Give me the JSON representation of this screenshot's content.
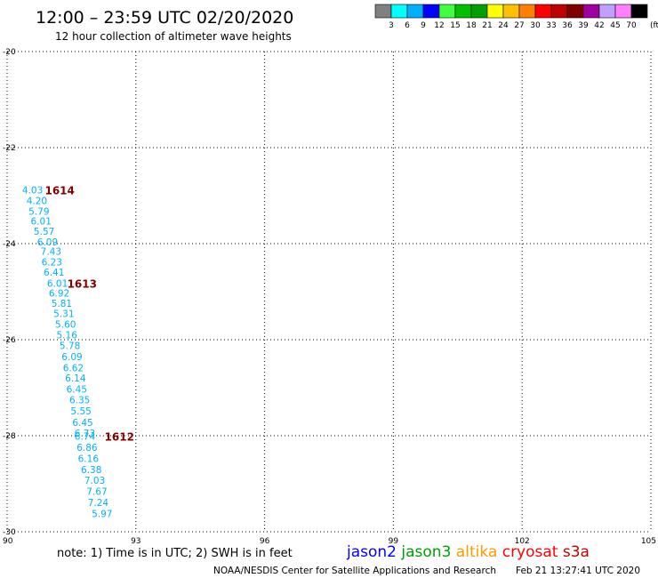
{
  "header": {
    "title": "12:00 – 23:59 UTC 02/20/2020",
    "subtitle": "12 hour collection of altimeter wave heights"
  },
  "legend": {
    "colors": [
      "#808080",
      "#00ffff",
      "#00b0ff",
      "#0000ff",
      "#40ff40",
      "#00c000",
      "#00a000",
      "#ffff00",
      "#ffc000",
      "#ff8000",
      "#ff0000",
      "#c00000",
      "#800000",
      "#a000a0",
      "#c0a0ff",
      "#ff80ff",
      "#000000"
    ],
    "labels": [
      "3",
      "6",
      "9",
      "12",
      "15",
      "18",
      "21",
      "24",
      "27",
      "30",
      "33",
      "36",
      "39",
      "42",
      "45",
      "70"
    ],
    "unit": "(ft)"
  },
  "footer": {
    "note": "note: 1) Time is in UTC; 2) SWH is in feet",
    "satellites": [
      {
        "name": "jason2",
        "color": "#0000ff"
      },
      {
        "name": "jason3",
        "color": "#00a000"
      },
      {
        "name": "altika",
        "color": "#ff9900"
      },
      {
        "name": "cryosat",
        "color": "#ff0000"
      },
      {
        "name": "s3a",
        "color": "#c00000"
      }
    ],
    "credit": "NOAA/NESDIS Center for Satellite Applications and Research",
    "timestamp": "Feb 21 13:27:41 UTC 2020"
  },
  "chart_data": {
    "type": "scatter",
    "xlim": [
      90,
      105
    ],
    "ylim": [
      -30,
      -20
    ],
    "x_ticks": [
      "90",
      "93",
      "96",
      "99",
      "102",
      "105"
    ],
    "y_ticks": [
      "-20",
      "-22",
      "-24",
      "-26",
      "-28",
      "-30"
    ],
    "grid": true,
    "point_color": "#00b0ff",
    "time_label_color": "#800000",
    "points": [
      {
        "x": 90.35,
        "y": -22.88,
        "label": "4.03"
      },
      {
        "x": 90.45,
        "y": -23.1,
        "label": "4.20"
      },
      {
        "x": 90.5,
        "y": -23.32,
        "label": "5.79"
      },
      {
        "x": 90.55,
        "y": -23.53,
        "label": "6.01"
      },
      {
        "x": 90.62,
        "y": -23.74,
        "label": "5.57"
      },
      {
        "x": 90.7,
        "y": -23.96,
        "label": "6.09"
      },
      {
        "x": 90.78,
        "y": -24.16,
        "label": "7.43"
      },
      {
        "x": 90.8,
        "y": -24.38,
        "label": "6.23"
      },
      {
        "x": 90.85,
        "y": -24.59,
        "label": "6.41"
      },
      {
        "x": 90.93,
        "y": -24.82,
        "label": "6.01"
      },
      {
        "x": 90.97,
        "y": -25.03,
        "label": "6.92"
      },
      {
        "x": 91.03,
        "y": -25.24,
        "label": "5.81"
      },
      {
        "x": 91.08,
        "y": -25.45,
        "label": "5.31"
      },
      {
        "x": 91.12,
        "y": -25.68,
        "label": "5.60"
      },
      {
        "x": 91.15,
        "y": -25.9,
        "label": "5.16"
      },
      {
        "x": 91.22,
        "y": -26.12,
        "label": "5.78"
      },
      {
        "x": 91.27,
        "y": -26.35,
        "label": "6.09"
      },
      {
        "x": 91.3,
        "y": -26.58,
        "label": "6.62"
      },
      {
        "x": 91.35,
        "y": -26.8,
        "label": "6.14"
      },
      {
        "x": 91.38,
        "y": -27.03,
        "label": "6.45"
      },
      {
        "x": 91.45,
        "y": -27.25,
        "label": "6.35"
      },
      {
        "x": 91.48,
        "y": -27.48,
        "label": "5.55"
      },
      {
        "x": 91.52,
        "y": -27.72,
        "label": "6.45"
      },
      {
        "x": 91.57,
        "y": -27.94,
        "label": "6.73"
      },
      {
        "x": 91.57,
        "y": -28.01,
        "label": "6.74"
      },
      {
        "x": 91.62,
        "y": -28.24,
        "label": "6.86"
      },
      {
        "x": 91.65,
        "y": -28.47,
        "label": "6.16"
      },
      {
        "x": 91.72,
        "y": -28.7,
        "label": "6.38"
      },
      {
        "x": 91.8,
        "y": -28.93,
        "label": "7.03"
      },
      {
        "x": 91.85,
        "y": -29.16,
        "label": "7.67"
      },
      {
        "x": 91.88,
        "y": -29.39,
        "label": "7.24"
      },
      {
        "x": 91.97,
        "y": -29.62,
        "label": "5.97"
      }
    ],
    "time_labels": [
      {
        "x": 90.88,
        "y": -22.88,
        "label": "1614"
      },
      {
        "x": 91.4,
        "y": -24.82,
        "label": "1613"
      },
      {
        "x": 92.27,
        "y": -28.01,
        "label": "1612"
      }
    ]
  }
}
